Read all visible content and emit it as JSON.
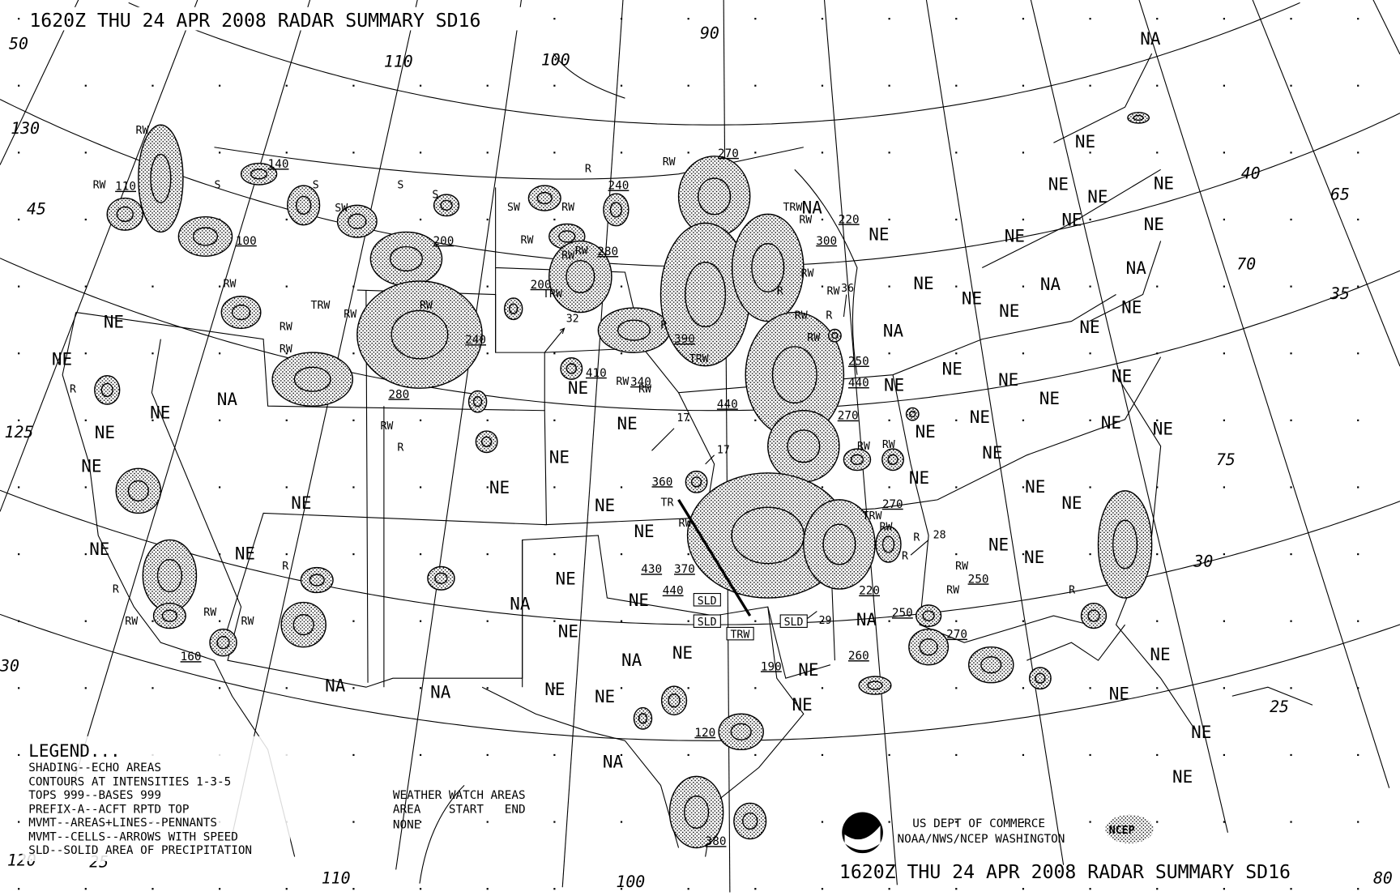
{
  "header": {
    "title": "1620Z THU 24 APR 2008 RADAR SUMMARY SD16"
  },
  "footer": {
    "title": "1620Z THU 24 APR 2008 RADAR SUMMARY SD16",
    "agency_line1": "US DEPT OF COMMERCE",
    "agency_line2": "NOAA/NWS/NCEP WASHINGTON",
    "noaa_logo": "NOAA",
    "ncep_logo": "NCEP"
  },
  "legend": {
    "title": "LEGEND...",
    "lines": [
      "SHADING--ECHO AREAS",
      "CONTOURS AT INTENSITIES 1-3-5",
      "TOPS 999--BASES 999",
      "PREFIX-A--ACFT RPTD TOP",
      "MVMT--AREAS+LINES--PENNANTS",
      "MVMT--CELLS--ARROWS WITH SPEED",
      "SLD--SOLID AREA OF PRECIPITATION"
    ]
  },
  "watch": {
    "title": "WEATHER WATCH AREAS",
    "header": "AREA    START   END",
    "value": "NONE"
  },
  "grid_labels": [
    "50",
    "130",
    "45",
    "125",
    "120",
    "25",
    "110",
    "100",
    "110",
    "100",
    "90",
    "40",
    "65",
    "70",
    "35",
    "75",
    "30",
    "25",
    "80",
    "30"
  ],
  "ne_labels": "NE",
  "na_labels": "NA",
  "tops": [
    "140",
    "110",
    "100",
    "200",
    "240",
    "280",
    "270",
    "240",
    "280",
    "200",
    "390",
    "410",
    "340",
    "440",
    "250",
    "440",
    "270",
    "220",
    "300",
    "360",
    "430",
    "370",
    "440",
    "220",
    "250",
    "270",
    "260",
    "190",
    "160",
    "120",
    "380",
    "250",
    "270"
  ],
  "precip": [
    "RW",
    "RW",
    "S",
    "S",
    "SW",
    "S",
    "S",
    "RW",
    "TRW",
    "RW",
    "RW",
    "RW",
    "RW",
    "SW",
    "RW",
    "RW",
    "R",
    "RW",
    "TRW",
    "RW",
    "RW",
    "R",
    "TRW",
    "RW",
    "TRW",
    "RW",
    "R",
    "RW",
    "RW",
    "RW",
    "RW",
    "R",
    "RW",
    "RW",
    "RW",
    "R",
    "RW",
    "R",
    "R",
    "R",
    "RW",
    "RW",
    "RW",
    "RW",
    "RW",
    "TR",
    "TRW",
    "R",
    "R",
    "RW",
    "RW",
    "R"
  ],
  "speeds": [
    "32",
    "17",
    "17",
    "28",
    "29",
    "36"
  ],
  "sld_boxes": [
    "SLD",
    "SLD",
    "TRW",
    "SLD"
  ],
  "colors": {
    "ink": "#000000",
    "background": "#ffffff"
  }
}
